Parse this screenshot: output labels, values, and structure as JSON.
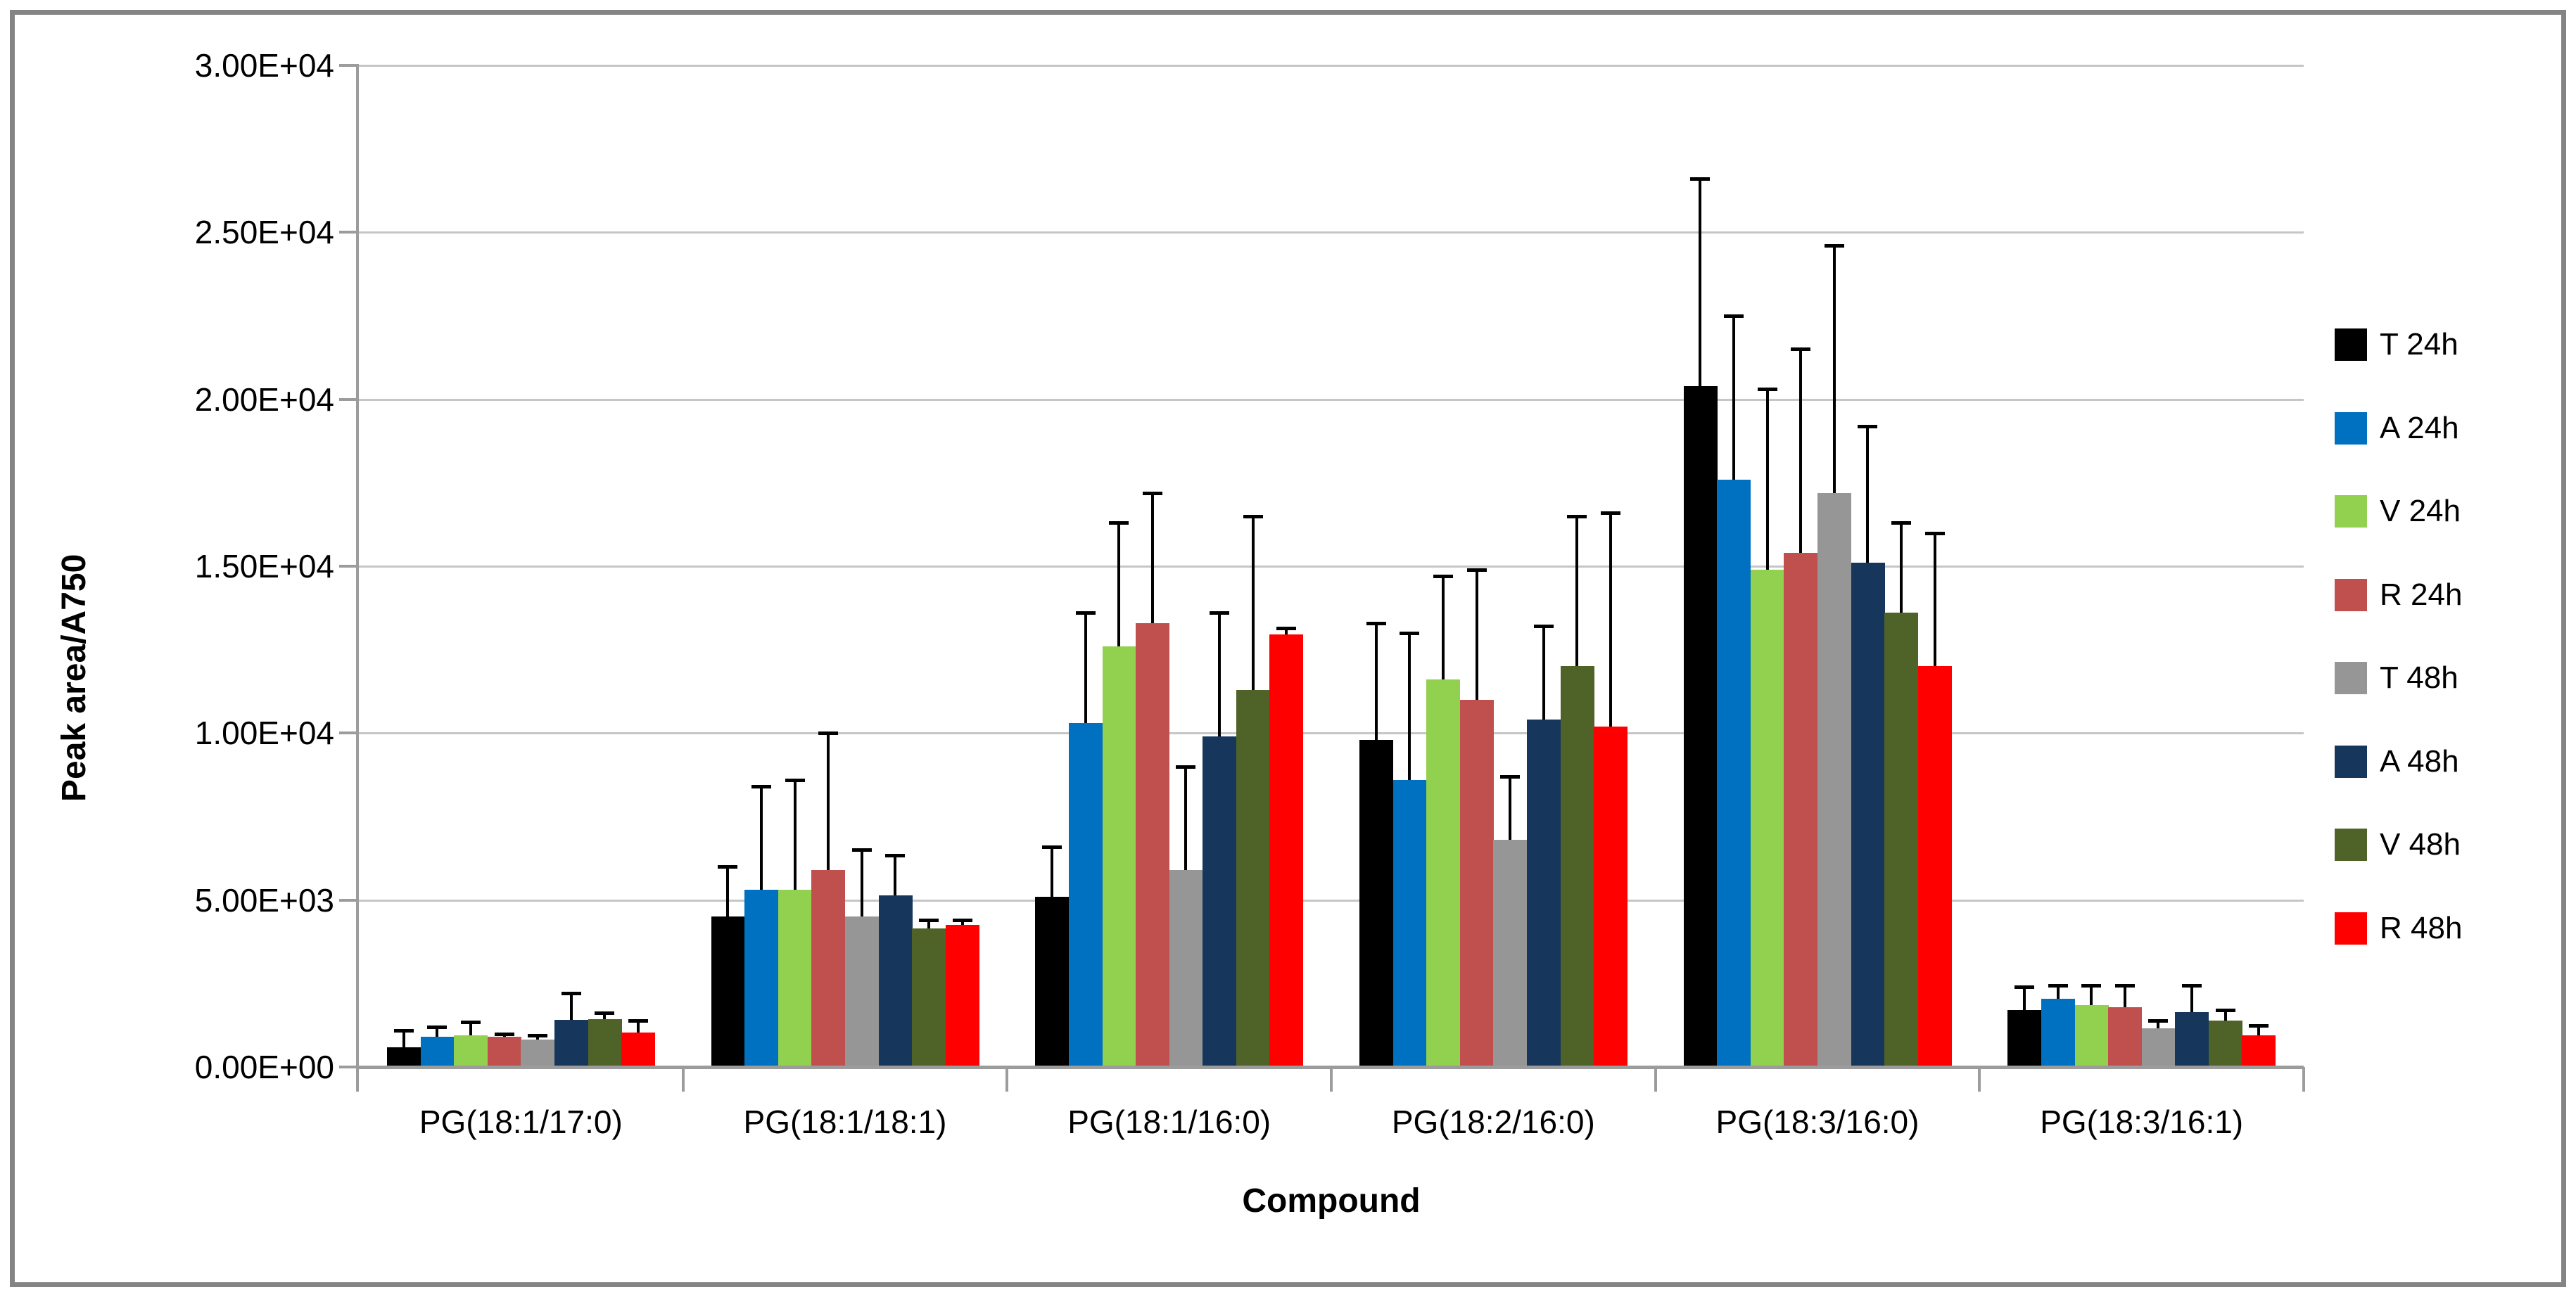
{
  "chart_data": {
    "type": "bar",
    "title": "",
    "xlabel": "Compound",
    "ylabel": "Peak area/A750",
    "ylim": [
      0,
      30000
    ],
    "ytick_step": 5000,
    "ytick_labels": [
      "0.00E+00",
      "5.00E+03",
      "1.00E+04",
      "1.50E+04",
      "2.00E+04",
      "2.50E+04",
      "3.00E+04"
    ],
    "grid": true,
    "legend_position": "right",
    "error_bars": "upper",
    "categories": [
      "PG(18:1/17:0)",
      "PG(18:1/18:1)",
      "PG(18:1/16:0)",
      "PG(18:2/16:0)",
      "PG(18:3/16:0)",
      "PG(18:3/16:1)"
    ],
    "series": [
      {
        "name": "T 24h",
        "color": "#000000",
        "values": [
          600,
          4500,
          5100,
          9800,
          20400,
          1700
        ],
        "errors": [
          500,
          1500,
          1500,
          3500,
          6200,
          700
        ]
      },
      {
        "name": "A 24h",
        "color": "#0070C0",
        "values": [
          900,
          5300,
          10300,
          8600,
          17600,
          2050
        ],
        "errors": [
          300,
          3100,
          3300,
          4400,
          4900,
          400
        ]
      },
      {
        "name": "V 24h",
        "color": "#92D050",
        "values": [
          950,
          5300,
          12600,
          11600,
          14900,
          1850
        ],
        "errors": [
          400,
          3300,
          3700,
          3100,
          5400,
          600
        ]
      },
      {
        "name": "R 24h",
        "color": "#C0504D",
        "values": [
          900,
          5900,
          13300,
          11000,
          15400,
          1800
        ],
        "errors": [
          80,
          4100,
          3900,
          3900,
          6100,
          650
        ]
      },
      {
        "name": "T 48h",
        "color": "#969696",
        "values": [
          820,
          4500,
          5900,
          6800,
          17200,
          1150
        ],
        "errors": [
          120,
          2000,
          3100,
          1900,
          7400,
          250
        ]
      },
      {
        "name": "A 48h",
        "color": "#16365C",
        "values": [
          1420,
          5150,
          9900,
          10400,
          15100,
          1650
        ],
        "errors": [
          800,
          1200,
          3700,
          2800,
          4100,
          800
        ]
      },
      {
        "name": "V 48h",
        "color": "#4F6228",
        "values": [
          1430,
          4150,
          11300,
          12000,
          13600,
          1400
        ],
        "errors": [
          200,
          250,
          5200,
          4500,
          2700,
          300
        ]
      },
      {
        "name": "R 48h",
        "color": "#FF0000",
        "values": [
          1030,
          4250,
          12950,
          10200,
          12000,
          950
        ],
        "errors": [
          350,
          150,
          200,
          6400,
          4000,
          300
        ]
      }
    ],
    "colors": {
      "gridline": "#c6c6c6",
      "axis": "#9c9c9c",
      "figure_border": "#848484",
      "background": "#ffffff",
      "text": "#000000"
    }
  }
}
